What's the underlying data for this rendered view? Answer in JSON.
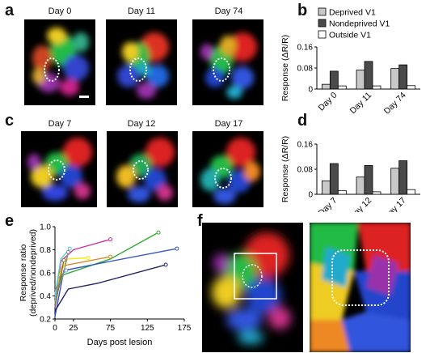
{
  "panels": {
    "a": {
      "label": "a",
      "days": [
        "Day 0",
        "Day 11",
        "Day 74"
      ]
    },
    "b": {
      "label": "b"
    },
    "c": {
      "label": "c",
      "days": [
        "Day 7",
        "Day 12",
        "Day 17"
      ]
    },
    "d": {
      "label": "d"
    },
    "e": {
      "label": "e"
    },
    "f": {
      "label": "f"
    }
  },
  "chart_data": [
    {
      "id": "b",
      "type": "bar",
      "categories": [
        "Day 0",
        "Day 11",
        "Day 74"
      ],
      "series": [
        {
          "name": "Deprived V1",
          "color": "#c8c8c8",
          "values": [
            0.018,
            0.072,
            0.078
          ]
        },
        {
          "name": "Nondeprived V1",
          "color": "#4a4a4a",
          "values": [
            0.068,
            0.105,
            0.092
          ]
        },
        {
          "name": "Outside V1",
          "color": "#ffffff",
          "values": [
            0.012,
            0.012,
            0.013
          ]
        }
      ],
      "ylabel": "Response (ΔR/R)",
      "ylim": [
        0,
        0.16
      ],
      "yticks": [
        "0",
        "0.08",
        "0.16"
      ],
      "legend": "top"
    },
    {
      "id": "d",
      "type": "bar",
      "categories": [
        "Day 7",
        "Day 12",
        "Day 17"
      ],
      "series": [
        {
          "name": "Deprived V1",
          "color": "#c8c8c8",
          "values": [
            0.043,
            0.055,
            0.083
          ]
        },
        {
          "name": "Nondeprived V1",
          "color": "#4a4a4a",
          "values": [
            0.098,
            0.092,
            0.107
          ]
        },
        {
          "name": "Outside V1",
          "color": "#ffffff",
          "values": [
            0.012,
            0.008,
            0.015
          ]
        }
      ],
      "ylabel": "Response (ΔR/R)",
      "ylim": [
        0,
        0.16
      ],
      "yticks": [
        "0",
        "0.08",
        "0.16"
      ]
    },
    {
      "id": "e",
      "type": "line",
      "xlabel": "Days post lesion",
      "ylabel": "Response ratio (deprived/nondeprived)",
      "xlim": [
        0,
        175
      ],
      "ylim": [
        0.2,
        1.0
      ],
      "xticks": [
        "0",
        "25",
        "75",
        "125",
        "175"
      ],
      "yticks": [
        "0.2",
        "0.4",
        "0.6",
        "0.8",
        "1.0"
      ],
      "series": [
        {
          "color": "#cc3399",
          "x": [
            0,
            8,
            25,
            75
          ],
          "y": [
            0.3,
            0.7,
            0.8,
            0.89
          ]
        },
        {
          "color": "#33aa33",
          "x": [
            0,
            10,
            75,
            140
          ],
          "y": [
            0.35,
            0.58,
            0.72,
            0.95
          ]
        },
        {
          "color": "#3355cc",
          "x": [
            0,
            12,
            75,
            165
          ],
          "y": [
            0.22,
            0.62,
            0.7,
            0.81
          ]
        },
        {
          "color": "#222266",
          "x": [
            0,
            18,
            58,
            150
          ],
          "y": [
            0.27,
            0.46,
            0.51,
            0.67
          ]
        },
        {
          "color": "#dd8822",
          "x": [
            0,
            10,
            75
          ],
          "y": [
            0.38,
            0.66,
            0.74
          ]
        },
        {
          "color": "#eeee00",
          "x": [
            0,
            7,
            17,
            45
          ],
          "y": [
            0.42,
            0.6,
            0.72,
            0.73
          ]
        },
        {
          "color": "#66aadd",
          "x": [
            0,
            4,
            15
          ],
          "y": [
            0.33,
            0.55,
            0.62
          ]
        },
        {
          "color": "#55cccc",
          "x": [
            0,
            8,
            20
          ],
          "y": [
            0.4,
            0.72,
            0.81
          ]
        },
        {
          "color": "#996633",
          "x": [
            0,
            12
          ],
          "y": [
            0.3,
            0.71
          ]
        },
        {
          "color": "#888888",
          "x": [
            0,
            10,
            18
          ],
          "y": [
            0.45,
            0.55,
            0.78
          ]
        }
      ]
    }
  ]
}
